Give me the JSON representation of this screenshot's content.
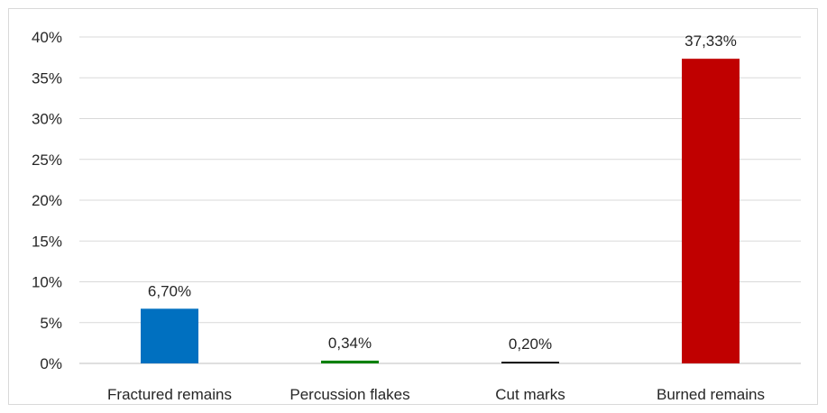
{
  "chart_data": {
    "type": "bar",
    "categories": [
      "Fractured remains",
      "Percussion flakes",
      "Cut marks",
      "Burned remains"
    ],
    "values": [
      6.7,
      0.34,
      0.2,
      37.33
    ],
    "data_labels": [
      "6,70%",
      "0,34%",
      "0,20%",
      "37,33%"
    ],
    "colors": [
      "#0070c0",
      "#008000",
      "#000000",
      "#c00000"
    ],
    "ylim": [
      0,
      40
    ],
    "yticks": [
      0,
      5,
      10,
      15,
      20,
      25,
      30,
      35,
      40
    ],
    "ytick_labels": [
      "0%",
      "5%",
      "10%",
      "15%",
      "20%",
      "25%",
      "30%",
      "35%",
      "40%"
    ],
    "grid": true,
    "legend": "none"
  }
}
